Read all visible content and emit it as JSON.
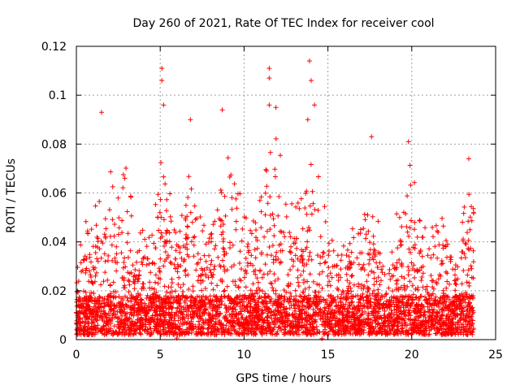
{
  "chart_data": {
    "type": "scatter",
    "title": "Day 260 of 2021, Rate Of TEC Index for receiver cool",
    "xlabel": "GPS time / hours",
    "ylabel": "ROTI / TECUs",
    "xlim": [
      0,
      25
    ],
    "ylim": [
      0,
      0.12
    ],
    "x_ticks": [
      "0",
      "5",
      "10",
      "15",
      "20",
      "25"
    ],
    "y_ticks": [
      "0",
      "0.02",
      "0.04",
      "0.06",
      "0.08",
      "0.1",
      "0.12"
    ],
    "grid": true,
    "marker": "+",
    "color": "#ff0000",
    "data_range_x": [
      0,
      23.7
    ],
    "notable_points": [
      {
        "x": 1.5,
        "y": 0.093
      },
      {
        "x": 5.1,
        "y": 0.111
      },
      {
        "x": 5.1,
        "y": 0.106
      },
      {
        "x": 5.2,
        "y": 0.096
      },
      {
        "x": 6.8,
        "y": 0.09
      },
      {
        "x": 8.7,
        "y": 0.094
      },
      {
        "x": 11.5,
        "y": 0.111
      },
      {
        "x": 11.5,
        "y": 0.107
      },
      {
        "x": 11.5,
        "y": 0.096
      },
      {
        "x": 11.9,
        "y": 0.095
      },
      {
        "x": 13.9,
        "y": 0.114
      },
      {
        "x": 14.0,
        "y": 0.106
      },
      {
        "x": 14.2,
        "y": 0.096
      },
      {
        "x": 13.8,
        "y": 0.09
      },
      {
        "x": 17.6,
        "y": 0.083
      },
      {
        "x": 19.8,
        "y": 0.081
      },
      {
        "x": 23.4,
        "y": 0.074
      }
    ],
    "envelope": [
      {
        "x": 0.0,
        "y": 0.03
      },
      {
        "x": 0.5,
        "y": 0.048
      },
      {
        "x": 1.0,
        "y": 0.052
      },
      {
        "x": 1.5,
        "y": 0.07
      },
      {
        "x": 2.0,
        "y": 0.07
      },
      {
        "x": 2.5,
        "y": 0.062
      },
      {
        "x": 3.0,
        "y": 0.076
      },
      {
        "x": 3.5,
        "y": 0.045
      },
      {
        "x": 4.0,
        "y": 0.045
      },
      {
        "x": 4.5,
        "y": 0.06
      },
      {
        "x": 5.0,
        "y": 0.074
      },
      {
        "x": 5.5,
        "y": 0.065
      },
      {
        "x": 6.0,
        "y": 0.04
      },
      {
        "x": 6.5,
        "y": 0.072
      },
      {
        "x": 7.0,
        "y": 0.06
      },
      {
        "x": 7.5,
        "y": 0.048
      },
      {
        "x": 8.0,
        "y": 0.045
      },
      {
        "x": 8.5,
        "y": 0.062
      },
      {
        "x": 9.0,
        "y": 0.075
      },
      {
        "x": 9.5,
        "y": 0.078
      },
      {
        "x": 10.0,
        "y": 0.062
      },
      {
        "x": 10.5,
        "y": 0.05
      },
      {
        "x": 11.0,
        "y": 0.062
      },
      {
        "x": 11.5,
        "y": 0.08
      },
      {
        "x": 12.0,
        "y": 0.088
      },
      {
        "x": 12.5,
        "y": 0.06
      },
      {
        "x": 13.0,
        "y": 0.056
      },
      {
        "x": 13.5,
        "y": 0.06
      },
      {
        "x": 14.0,
        "y": 0.08
      },
      {
        "x": 14.5,
        "y": 0.068
      },
      {
        "x": 15.0,
        "y": 0.05
      },
      {
        "x": 15.5,
        "y": 0.038
      },
      {
        "x": 16.0,
        "y": 0.04
      },
      {
        "x": 16.5,
        "y": 0.048
      },
      {
        "x": 17.0,
        "y": 0.048
      },
      {
        "x": 17.5,
        "y": 0.062
      },
      {
        "x": 18.0,
        "y": 0.05
      },
      {
        "x": 18.5,
        "y": 0.032
      },
      {
        "x": 19.0,
        "y": 0.05
      },
      {
        "x": 19.5,
        "y": 0.062
      },
      {
        "x": 20.0,
        "y": 0.078
      },
      {
        "x": 20.5,
        "y": 0.05
      },
      {
        "x": 21.0,
        "y": 0.048
      },
      {
        "x": 21.5,
        "y": 0.055
      },
      {
        "x": 22.0,
        "y": 0.055
      },
      {
        "x": 22.5,
        "y": 0.042
      },
      {
        "x": 23.0,
        "y": 0.05
      },
      {
        "x": 23.5,
        "y": 0.068
      },
      {
        "x": 23.7,
        "y": 0.06
      }
    ]
  }
}
